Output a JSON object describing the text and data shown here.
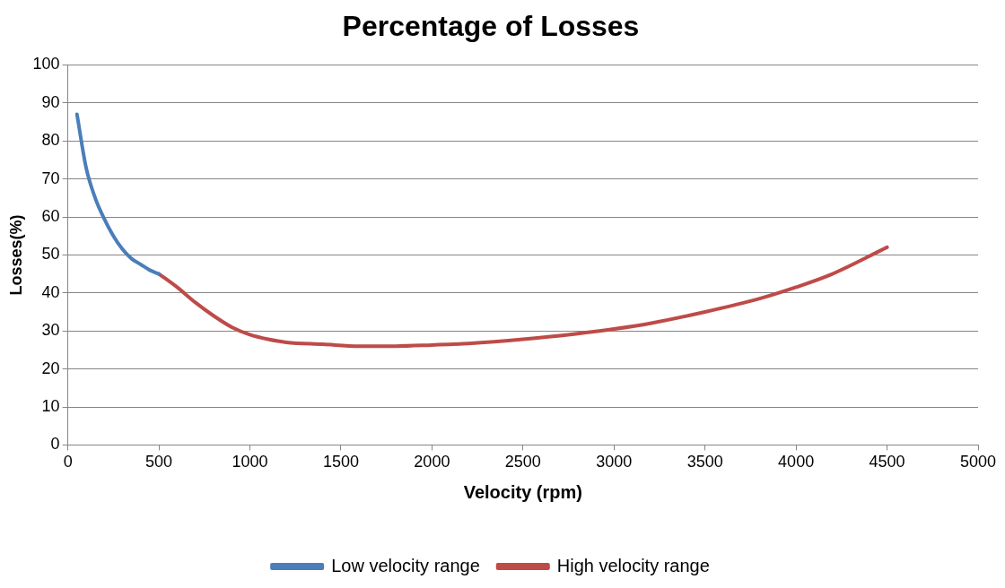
{
  "chart_data": {
    "type": "line",
    "title": "Percentage of Losses",
    "xlabel": "Velocity (rpm)",
    "ylabel": "Losses(%)",
    "xlim": [
      0,
      5000
    ],
    "xticks": [
      0,
      500,
      1000,
      1500,
      2000,
      2500,
      3000,
      3500,
      4000,
      4500,
      5000
    ],
    "ylim": [
      0,
      100
    ],
    "yticks": [
      0,
      10,
      20,
      30,
      40,
      50,
      60,
      70,
      80,
      90,
      100
    ],
    "grid": "y",
    "legend": "bottom",
    "marker": "none",
    "line_style": "solid",
    "series": [
      {
        "name": "Low velocity range",
        "color": "#4a7ebb",
        "x": [
          50,
          100,
          150,
          200,
          250,
          300,
          350,
          400,
          450,
          500
        ],
        "values": [
          87,
          73,
          65,
          59.5,
          55,
          51.5,
          49,
          47.5,
          46,
          45
        ]
      },
      {
        "name": "High velocity range",
        "color": "#be4b48",
        "x": [
          500,
          600,
          700,
          800,
          900,
          1000,
          1100,
          1200,
          1400,
          1600,
          1800,
          2000,
          2200,
          2500,
          2800,
          3000,
          3200,
          3500,
          3800,
          4000,
          4200,
          4500
        ],
        "values": [
          45,
          41.5,
          37.5,
          34,
          31,
          29,
          27.8,
          27,
          26.5,
          26,
          26,
          26.3,
          26.7,
          27.8,
          29.3,
          30.5,
          32,
          35,
          38.5,
          41.5,
          45,
          52
        ]
      }
    ]
  }
}
